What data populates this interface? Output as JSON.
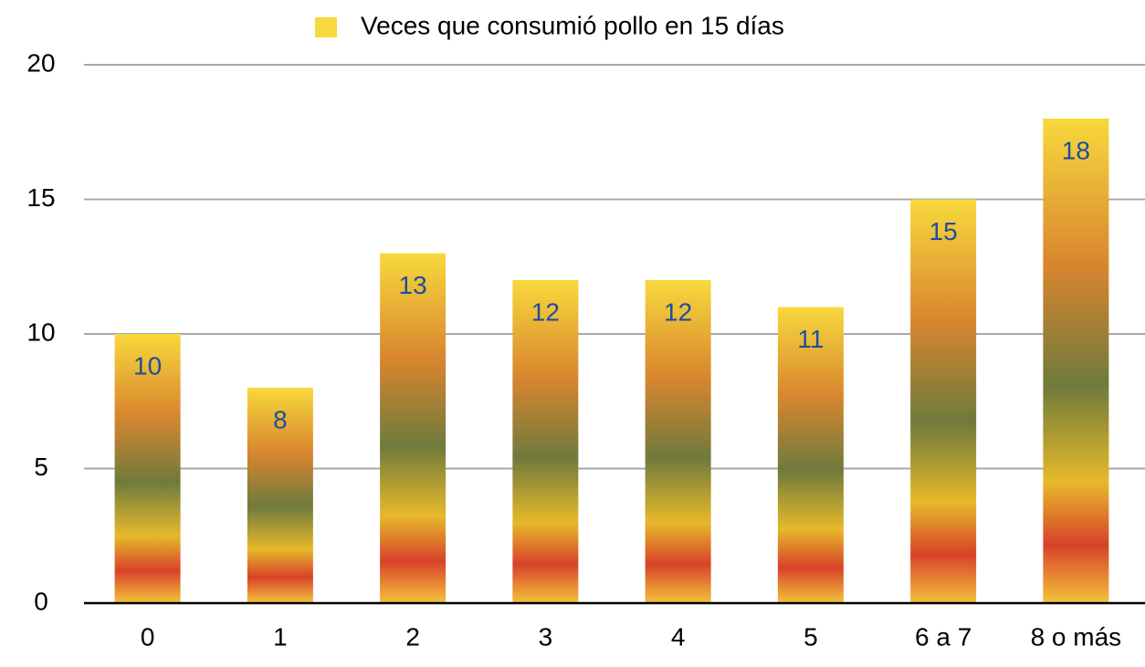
{
  "chart_data": {
    "type": "bar",
    "categories": [
      "0",
      "1",
      "2",
      "3",
      "4",
      "5",
      "6 a 7",
      "8 o más"
    ],
    "series": [
      {
        "name": "Veces que consumió pollo en 15 días",
        "color": "#f7d93c",
        "values": [
          10,
          8,
          13,
          12,
          12,
          11,
          15,
          18
        ]
      }
    ],
    "ylim": [
      0,
      20
    ],
    "yticks": [
      0,
      5,
      10,
      15,
      20
    ],
    "grid": true,
    "legend": "top"
  }
}
